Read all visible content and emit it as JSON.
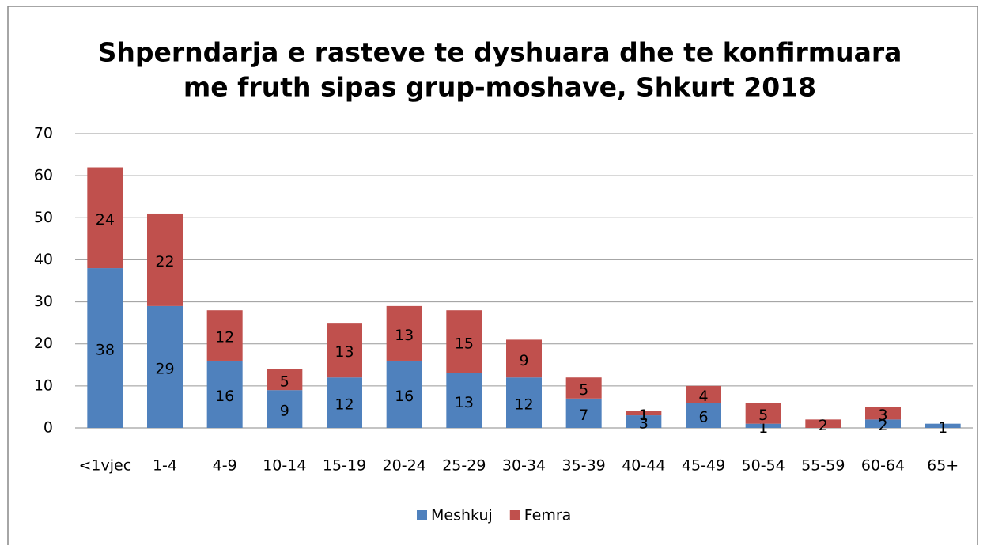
{
  "chart_data": {
    "type": "stacked_bar",
    "title": [
      "Shperndarja e rasteve te dyshuara dhe te konfirmuara",
      "me fruth sipas grup-moshave, Shkurt 2018"
    ],
    "categories": [
      "<1vjec",
      "1-4",
      "4-9",
      "10-14",
      "15-19",
      "20-24",
      "25-29",
      "30-34",
      "35-39",
      "40-44",
      "45-49",
      "50-54",
      "55-59",
      "60-64",
      "65+"
    ],
    "series": [
      {
        "name": "Meshkuj",
        "color": "#4f81bd",
        "values": [
          38,
          29,
          16,
          9,
          12,
          16,
          13,
          12,
          7,
          3,
          6,
          1,
          null,
          2,
          1
        ]
      },
      {
        "name": "Femra",
        "color": "#c0504d",
        "values": [
          24,
          22,
          12,
          5,
          13,
          13,
          15,
          9,
          5,
          1,
          4,
          5,
          2,
          3,
          null
        ]
      }
    ],
    "ylim": [
      0,
      70
    ],
    "yticks": [
      0,
      10,
      20,
      30,
      40,
      50,
      60,
      70
    ],
    "grid": true,
    "legend": "bottom"
  }
}
